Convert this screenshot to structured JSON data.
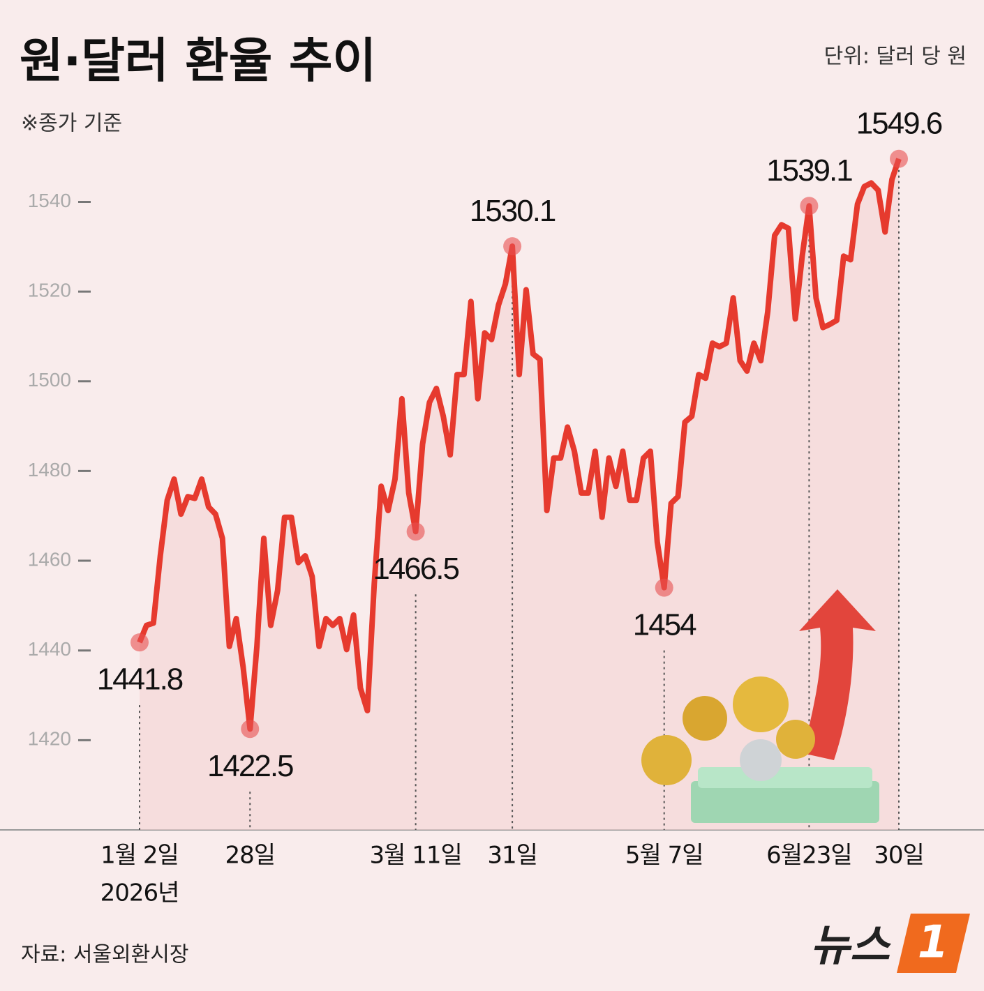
{
  "chart_data": {
    "type": "line",
    "title": "원·달러 환율 추이",
    "unit": "단위: 달러 당 원",
    "subtitle": "※종가 기준",
    "source": "자료: 서울외환시장",
    "logo": {
      "text": "뉴스",
      "badge": "1"
    },
    "x_note": "2026년",
    "categories": [
      "1월 2일",
      null,
      null,
      null,
      null,
      null,
      null,
      null,
      null,
      null,
      null,
      null,
      null,
      null,
      null,
      null,
      "28일",
      null,
      null,
      null,
      null,
      null,
      null,
      null,
      null,
      null,
      null,
      null,
      null,
      null,
      null,
      null,
      null,
      null,
      null,
      null,
      null,
      null,
      null,
      null,
      "3월 11일",
      null,
      null,
      null,
      null,
      null,
      null,
      null,
      null,
      null,
      null,
      null,
      null,
      null,
      "31일",
      null,
      null,
      null,
      null,
      null,
      null,
      null,
      null,
      null,
      null,
      null,
      null,
      null,
      null,
      null,
      null,
      null,
      null,
      null,
      null,
      null,
      "5월 7일",
      null,
      null,
      null,
      null,
      null,
      null,
      null,
      null,
      null,
      null,
      null,
      null,
      null,
      null,
      null,
      null,
      null,
      null,
      null,
      null,
      "6월23일",
      null,
      null,
      null,
      null,
      null,
      null,
      null,
      null,
      null,
      null,
      null,
      null,
      "30일"
    ],
    "series": [
      {
        "name": "원·달러 환율",
        "color": "#e63a2e",
        "values": [
          1441.8,
          1445.6,
          1446.1,
          1461.1,
          1473.5,
          1478.2,
          1470.4,
          1474.3,
          1473.9,
          1478.2,
          1472.0,
          1470.4,
          1465.0,
          1440.9,
          1447.1,
          1436.3,
          1422.5,
          1440.9,
          1465.0,
          1445.6,
          1453.4,
          1469.7,
          1469.7,
          1459.6,
          1461.1,
          1456.5,
          1440.9,
          1447.1,
          1445.6,
          1447.1,
          1440.2,
          1447.9,
          1431.6,
          1426.6,
          1454.9,
          1476.6,
          1471.2,
          1478.2,
          1496.1,
          1475.1,
          1466.5,
          1486.0,
          1495.3,
          1498.4,
          1492.2,
          1483.6,
          1501.5,
          1501.5,
          1517.8,
          1496.1,
          1510.8,
          1509.3,
          1517.0,
          1521.7,
          1530.1,
          1501.5,
          1520.4,
          1506.1,
          1504.9,
          1471.2,
          1482.9,
          1482.9,
          1489.8,
          1484.4,
          1475.1,
          1475.1,
          1484.4,
          1469.7,
          1482.9,
          1476.6,
          1484.4,
          1473.5,
          1473.5,
          1482.9,
          1484.4,
          1464.2,
          1454,
          1472.8,
          1474.3,
          1490.9,
          1492.2,
          1501.5,
          1500.7,
          1508.5,
          1507.7,
          1508.5,
          1518.6,
          1504.6,
          1502.3,
          1508.5,
          1504.6,
          1515.5,
          1532.5,
          1534.9,
          1534.1,
          1513.9,
          1527.9,
          1539.1,
          1518.6,
          1512.0,
          1512.7,
          1513.6,
          1527.9,
          1527.1,
          1539.5,
          1543.4,
          1544.2,
          1542.6,
          1533.3,
          1545.0,
          1549.6
        ],
        "value_labels": [
          "1441.8",
          null,
          null,
          null,
          null,
          null,
          null,
          null,
          null,
          null,
          null,
          null,
          null,
          null,
          null,
          null,
          "1422.5",
          null,
          null,
          null,
          null,
          null,
          null,
          null,
          null,
          null,
          null,
          null,
          null,
          null,
          null,
          null,
          null,
          null,
          null,
          null,
          null,
          null,
          null,
          null,
          "1466.5",
          null,
          null,
          null,
          null,
          null,
          null,
          null,
          null,
          null,
          null,
          null,
          null,
          null,
          "1530.1",
          null,
          null,
          null,
          null,
          null,
          null,
          null,
          null,
          null,
          null,
          null,
          null,
          null,
          null,
          null,
          null,
          null,
          null,
          null,
          null,
          null,
          "1454",
          null,
          null,
          null,
          null,
          null,
          null,
          null,
          null,
          null,
          null,
          null,
          null,
          null,
          null,
          null,
          null,
          null,
          null,
          null,
          null,
          "1539.1",
          null,
          null,
          null,
          null,
          null,
          null,
          null,
          null,
          null,
          null,
          null,
          null,
          "1549.6"
        ]
      }
    ],
    "ylim": [
      1400,
      1585
    ],
    "yticks": [
      1420,
      1440,
      1460,
      1480,
      1500,
      1520,
      1540
    ],
    "grid": false
  }
}
